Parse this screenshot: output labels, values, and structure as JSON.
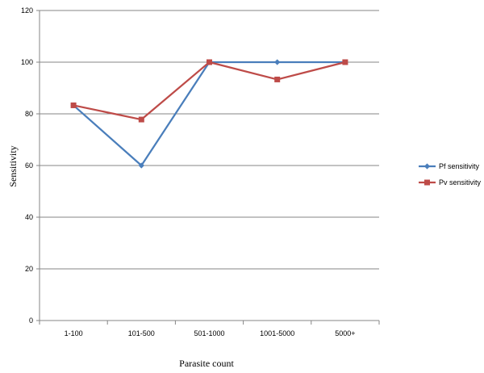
{
  "chart_data": {
    "type": "line",
    "categories": [
      "1-100",
      "101-500",
      "501-1000",
      "1001-5000",
      "5000+"
    ],
    "series": [
      {
        "name": "Pf sensitivity",
        "values": [
          83.3,
          60,
          100,
          100,
          100
        ],
        "color": "#4a7ebb",
        "marker": "diamond"
      },
      {
        "name": "Pv sensitivity",
        "values": [
          83.3,
          77.8,
          100,
          93.3,
          100
        ],
        "color": "#be4b48",
        "marker": "square"
      }
    ],
    "xlabel": "Parasite count",
    "ylabel": "Sensitivity",
    "ylim": [
      0,
      120
    ],
    "yticks": [
      0,
      20,
      40,
      60,
      80,
      100,
      120
    ],
    "grid": true,
    "legend": "right"
  }
}
